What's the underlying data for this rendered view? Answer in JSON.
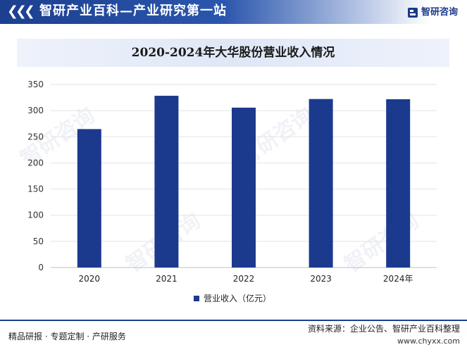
{
  "header": {
    "title": "智研产业百科—产业研究第一站",
    "brand": "智研咨询"
  },
  "watermark": "智研咨询",
  "chart_data": {
    "type": "bar",
    "title": "2020-2024年大华股份营业收入情况",
    "categories": [
      "2020",
      "2021",
      "2022",
      "2023",
      "2024年"
    ],
    "series": [
      {
        "name": "营业收入（亿元）",
        "values": [
          264.7,
          328.4,
          305.7,
          322.2,
          321.8
        ],
        "color": "#1b3a8e"
      }
    ],
    "y_ticks": [
      "0",
      "50",
      "100",
      "150",
      "200",
      "250",
      "300",
      "350"
    ],
    "ylim": [
      0,
      350
    ],
    "grid": true,
    "legend_position": "bottom"
  },
  "footer": {
    "left": "精品研报 · 专题定制 · 产研服务",
    "source": "资料来源：企业公告、智研产业百科整理",
    "url": "www.chyxx.com"
  },
  "colors": {
    "accent": "#1c3f8f",
    "bar": "#1b3a8e"
  }
}
